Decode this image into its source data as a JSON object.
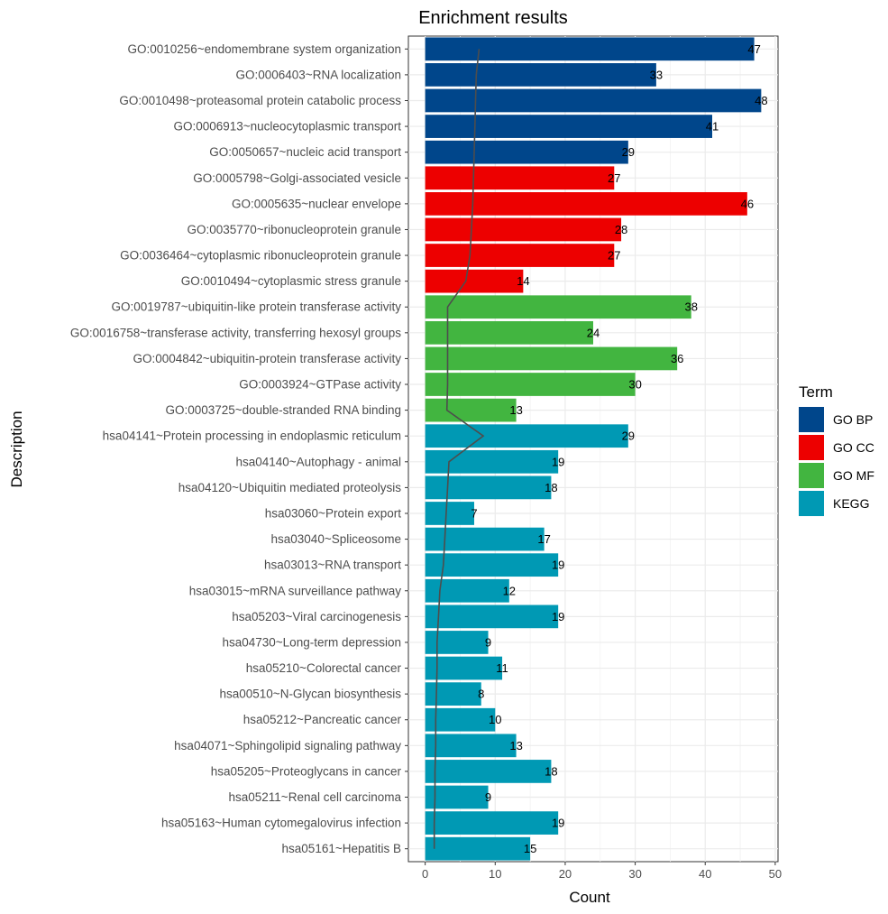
{
  "chart_data": {
    "type": "bar",
    "orientation": "horizontal",
    "title": "Enrichment results",
    "xlabel": "Count",
    "ylabel": "Description",
    "xlim": [
      -2.4,
      50.4
    ],
    "xticks": [
      0,
      10,
      20,
      30,
      40,
      50
    ],
    "grid": true,
    "legend": {
      "title": "Term",
      "position": "right",
      "entries": [
        {
          "name": "GO BP",
          "color": "#00468b"
        },
        {
          "name": "GO CC",
          "color": "#ed0000"
        },
        {
          "name": "GO MF",
          "color": "#42b540"
        },
        {
          "name": "KEGG",
          "color": "#0099b4"
        }
      ]
    },
    "bars": [
      {
        "label": "GO:0010256~endomembrane system organization",
        "value": 47,
        "term": "GO BP"
      },
      {
        "label": "GO:0006403~RNA localization",
        "value": 33,
        "term": "GO BP"
      },
      {
        "label": "GO:0010498~proteasomal protein catabolic process",
        "value": 48,
        "term": "GO BP"
      },
      {
        "label": "GO:0006913~nucleocytoplasmic transport",
        "value": 41,
        "term": "GO BP"
      },
      {
        "label": "GO:0050657~nucleic acid transport",
        "value": 29,
        "term": "GO BP"
      },
      {
        "label": "GO:0005798~Golgi-associated vesicle",
        "value": 27,
        "term": "GO CC"
      },
      {
        "label": "GO:0005635~nuclear envelope",
        "value": 46,
        "term": "GO CC"
      },
      {
        "label": "GO:0035770~ribonucleoprotein granule",
        "value": 28,
        "term": "GO CC"
      },
      {
        "label": "GO:0036464~cytoplasmic ribonucleoprotein granule",
        "value": 27,
        "term": "GO CC"
      },
      {
        "label": "GO:0010494~cytoplasmic stress granule",
        "value": 14,
        "term": "GO CC"
      },
      {
        "label": "GO:0019787~ubiquitin-like protein transferase activity",
        "value": 38,
        "term": "GO MF"
      },
      {
        "label": "GO:0016758~transferase activity, transferring hexosyl groups",
        "value": 24,
        "term": "GO MF"
      },
      {
        "label": "GO:0004842~ubiquitin-protein transferase activity",
        "value": 36,
        "term": "GO MF"
      },
      {
        "label": "GO:0003924~GTPase activity",
        "value": 30,
        "term": "GO MF"
      },
      {
        "label": "GO:0003725~double-stranded RNA binding",
        "value": 13,
        "term": "GO MF"
      },
      {
        "label": "hsa04141~Protein processing in endoplasmic reticulum",
        "value": 29,
        "term": "KEGG"
      },
      {
        "label": "hsa04140~Autophagy - animal",
        "value": 19,
        "term": "KEGG"
      },
      {
        "label": "hsa04120~Ubiquitin mediated proteolysis",
        "value": 18,
        "term": "KEGG"
      },
      {
        "label": "hsa03060~Protein export",
        "value": 7,
        "term": "KEGG"
      },
      {
        "label": "hsa03040~Spliceosome",
        "value": 17,
        "term": "KEGG"
      },
      {
        "label": "hsa03013~RNA transport",
        "value": 19,
        "term": "KEGG"
      },
      {
        "label": "hsa03015~mRNA surveillance pathway",
        "value": 12,
        "term": "KEGG"
      },
      {
        "label": "hsa05203~Viral carcinogenesis",
        "value": 19,
        "term": "KEGG"
      },
      {
        "label": "hsa04730~Long-term depression",
        "value": 9,
        "term": "KEGG"
      },
      {
        "label": "hsa05210~Colorectal cancer",
        "value": 11,
        "term": "KEGG"
      },
      {
        "label": "hsa00510~N-Glycan biosynthesis",
        "value": 8,
        "term": "KEGG"
      },
      {
        "label": "hsa05212~Pancreatic cancer",
        "value": 10,
        "term": "KEGG"
      },
      {
        "label": "hsa04071~Sphingolipid signaling pathway",
        "value": 13,
        "term": "KEGG"
      },
      {
        "label": "hsa05205~Proteoglycans in cancer",
        "value": 18,
        "term": "KEGG"
      },
      {
        "label": "hsa05211~Renal cell carcinoma",
        "value": 9,
        "term": "KEGG"
      },
      {
        "label": "hsa05163~Human cytomegalovirus infection",
        "value": 19,
        "term": "KEGG"
      },
      {
        "label": "hsa05161~Hepatitis B",
        "value": 15,
        "term": "KEGG"
      }
    ],
    "line": {
      "color": "#4d4d4d",
      "values": [
        7.7,
        7.3,
        7.2,
        7.1,
        7.0,
        6.9,
        6.8,
        6.6,
        6.4,
        5.8,
        3.2,
        3.2,
        3.2,
        3.2,
        3.1,
        8.3,
        3.4,
        3.2,
        3.0,
        2.8,
        2.6,
        2.1,
        1.9,
        1.7,
        1.7,
        1.6,
        1.5,
        1.5,
        1.4,
        1.4,
        1.3,
        1.3
      ]
    }
  }
}
